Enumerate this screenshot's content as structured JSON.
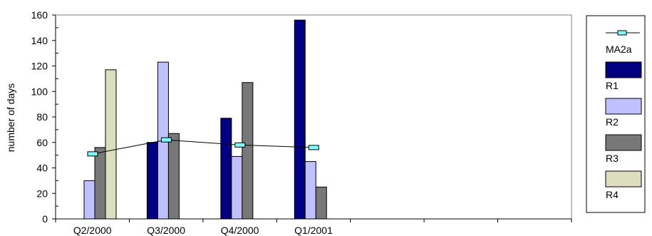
{
  "chart_data": {
    "type": "bar",
    "title": "",
    "xlabel": "",
    "ylabel": "number of days",
    "ylim": [
      0,
      160
    ],
    "yticks": [
      0,
      20,
      40,
      60,
      80,
      100,
      120,
      140,
      160
    ],
    "grid": false,
    "legend_position": "right",
    "categories": [
      "Q2/2000",
      "Q3/2000",
      "Q4/2000",
      "Q1/2001"
    ],
    "empty_slots_after": 3,
    "series": [
      {
        "name": "R1",
        "type": "bar",
        "color": "#000080",
        "values": [
          null,
          60,
          79,
          156
        ]
      },
      {
        "name": "R2",
        "type": "bar",
        "color": "#c0c0ff",
        "values": [
          30,
          123,
          49,
          45
        ]
      },
      {
        "name": "R3",
        "type": "bar",
        "color": "#787878",
        "values": [
          56,
          67,
          107,
          25
        ]
      },
      {
        "name": "R4",
        "type": "bar",
        "color": "#ddddc0",
        "values": [
          117,
          null,
          null,
          null
        ]
      },
      {
        "name": "MA2a",
        "type": "line",
        "color": "#80ffff",
        "values": [
          51,
          62,
          58,
          56
        ]
      }
    ],
    "legend_order": [
      "MA2a",
      "R1",
      "R2",
      "R3",
      "R4"
    ]
  }
}
